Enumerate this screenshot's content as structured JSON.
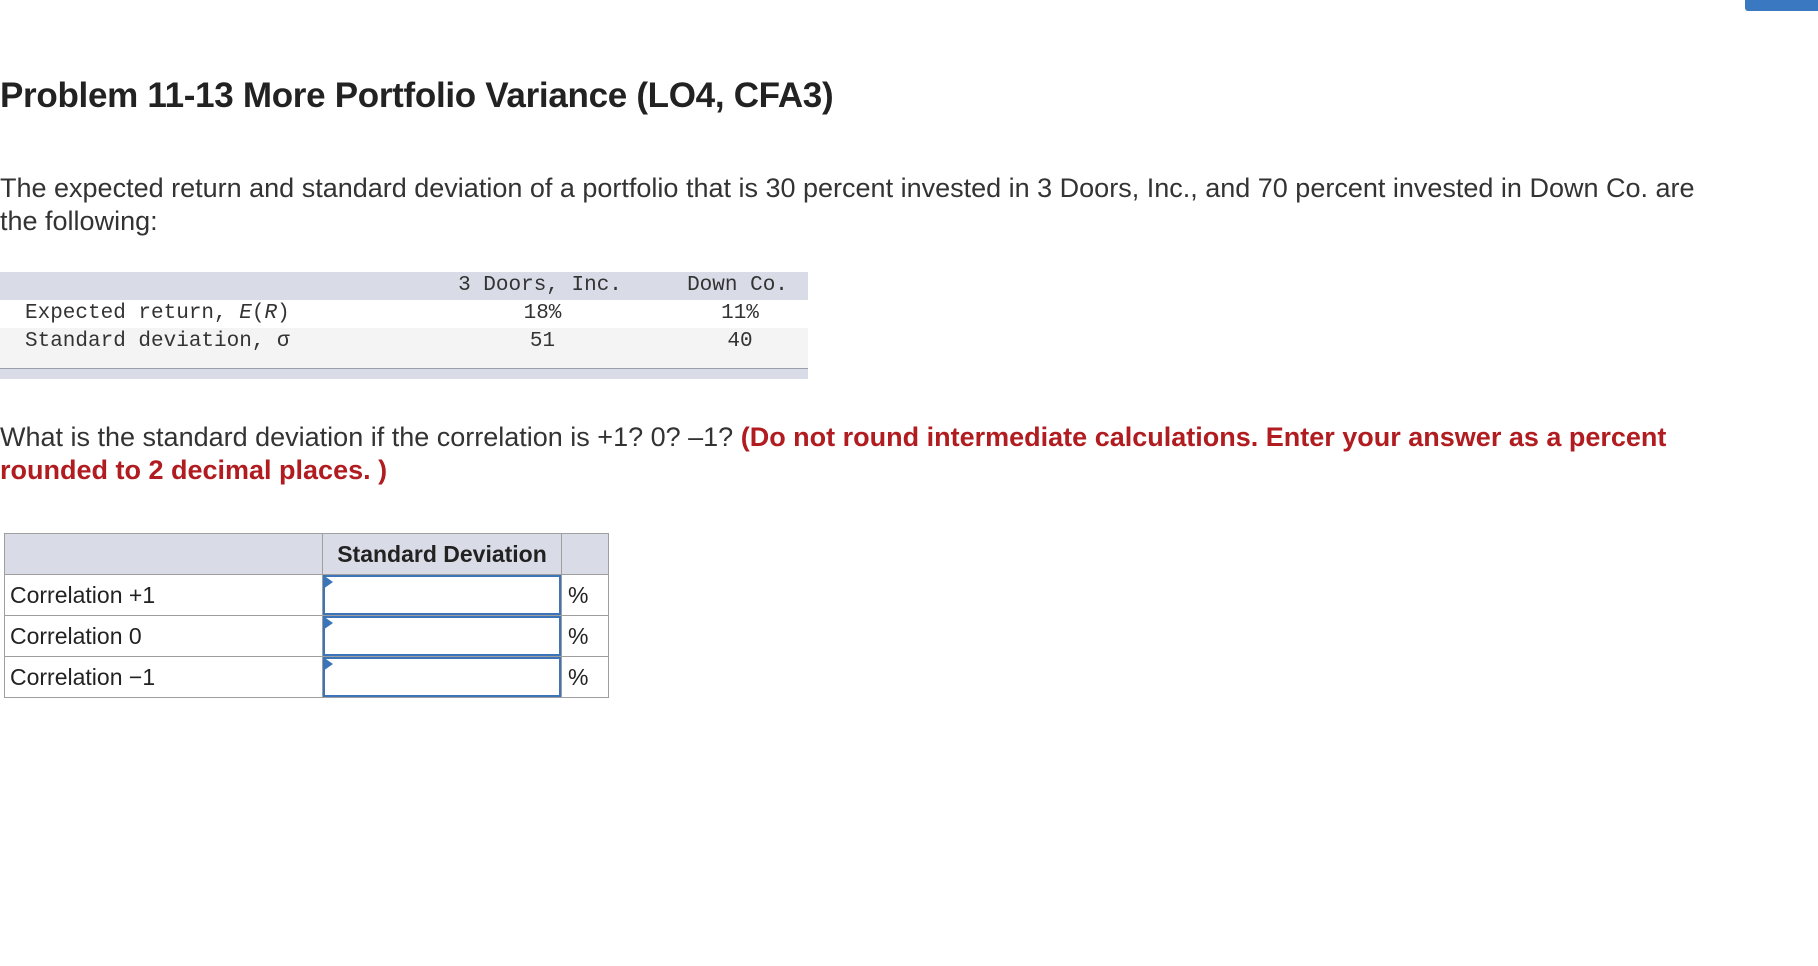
{
  "problem": {
    "title": "Problem 11-13 More Portfolio Variance (LO4, CFA3)",
    "intro": "The expected return and standard deviation of a portfolio that is 30 percent invested in 3 Doors, Inc., and 70 percent invested in Down Co. are the following:"
  },
  "data_table": {
    "columns": [
      "3 Doors, Inc.",
      "Down Co."
    ],
    "rows": [
      {
        "label_prefix": "Expected return, ",
        "label_math": "E",
        "label_paren_open": "(",
        "label_math2": "R",
        "label_paren_close": ")",
        "values": [
          "18%",
          "11%"
        ]
      },
      {
        "label": "Standard deviation, σ",
        "values": [
          "51",
          "40"
        ]
      }
    ]
  },
  "question": {
    "text": "What is the standard deviation if the correlation is +1? 0? –1? ",
    "instruction": "(Do not round intermediate calculations. Enter your answer as a percent rounded to 2 decimal places. )"
  },
  "answer_table": {
    "header": [
      "",
      "Standard Deviation",
      ""
    ],
    "rows": [
      {
        "label": "Correlation +1",
        "value": "",
        "unit": "%"
      },
      {
        "label": "Correlation 0",
        "value": "",
        "unit": "%"
      },
      {
        "label": "Correlation −1",
        "value": "",
        "unit": "%"
      }
    ]
  },
  "colors": {
    "accent": "#3a79c2",
    "instruction_red": "#b01c20",
    "table_header_bg": "#d9dce6",
    "input_border": "#3b74b8"
  }
}
